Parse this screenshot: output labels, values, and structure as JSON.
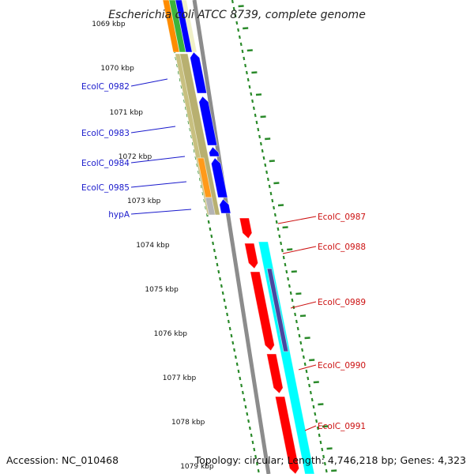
{
  "title": "Escherichia coli ATCC 8739, complete genome",
  "accession": "Accession: NC_010468",
  "topology": "Topology: circular; Length: 4,746,218 bp; Genes: 4,323",
  "colors": {
    "forward_gene": "#0000ff",
    "reverse_gene": "#ff0000",
    "backbone": "#8c8c8c",
    "tick": "#2a8a2a",
    "cds_cyan": "#00ffff",
    "label_blue": "#1a1acc",
    "label_red": "#cc1010"
  },
  "ticks": [
    "1069 kbp",
    "1070 kbp",
    "1071 kbp",
    "1072 kbp",
    "1073 kbp",
    "1074 kbp",
    "1075 kbp",
    "1076 kbp",
    "1077 kbp",
    "1078 kbp",
    "1079 kbp"
  ],
  "forward_genes": [
    "EcolC_0982",
    "EcolC_0983",
    "EcolC_0984",
    "EcolC_0985",
    "hypA"
  ],
  "reverse_genes": [
    "EcolC_0987",
    "EcolC_0988",
    "EcolC_0989",
    "EcolC_0990",
    "EcolC_0991"
  ]
}
